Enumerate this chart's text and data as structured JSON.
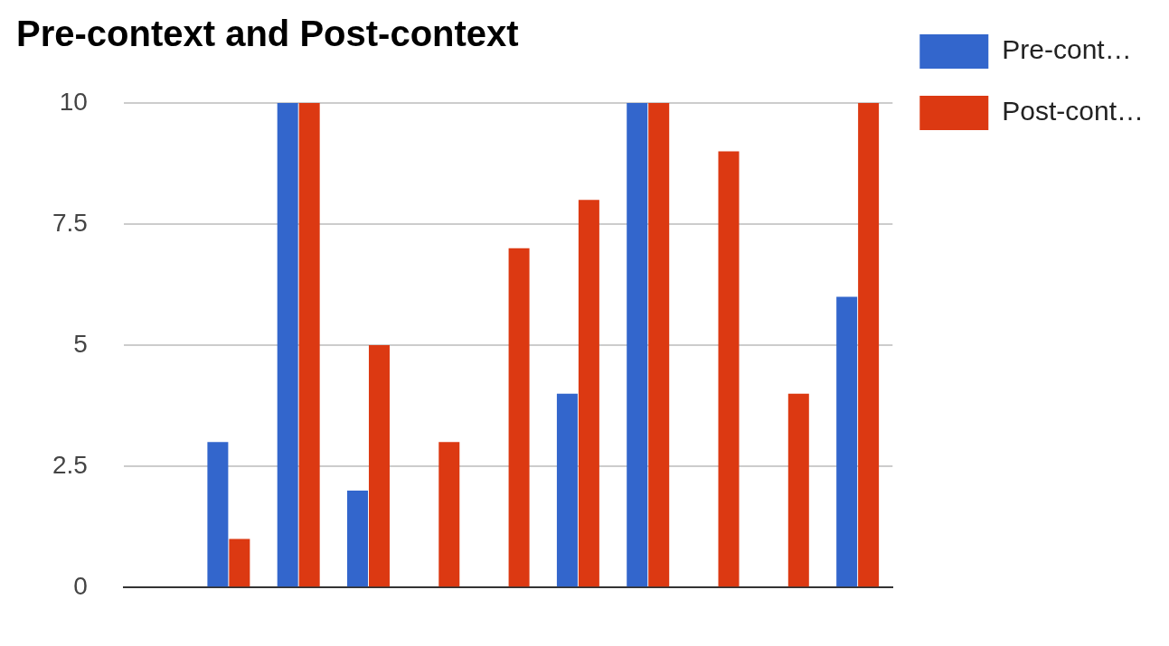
{
  "chart_data": {
    "type": "bar",
    "title": "Pre-context and Post-context",
    "categories": [
      null,
      null,
      null,
      null,
      null,
      null,
      null,
      null,
      null,
      null,
      null
    ],
    "series": [
      {
        "name": "Pre-cont…",
        "color": "#3366cc",
        "values": [
          0,
          3,
          10,
          2,
          0,
          0,
          4,
          10,
          0,
          0,
          6
        ]
      },
      {
        "name": "Post-cont…",
        "color": "#dc3912",
        "values": [
          0,
          1,
          10,
          5,
          3,
          7,
          8,
          10,
          9,
          4,
          10
        ]
      }
    ],
    "ylim": [
      0,
      10
    ],
    "yticks": [
      0,
      2.5,
      5,
      7.5,
      10
    ],
    "grid": "y",
    "legend": "right",
    "tick_labels": "y"
  }
}
